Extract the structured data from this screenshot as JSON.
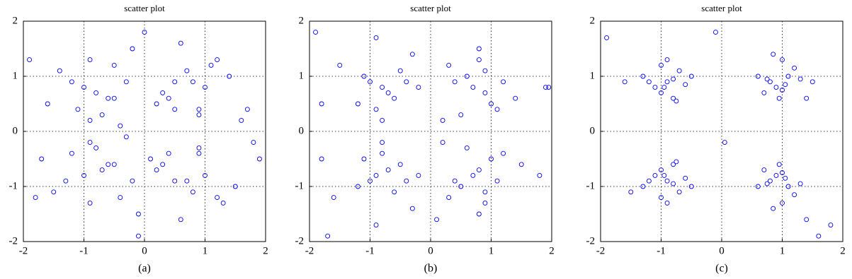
{
  "chart_data": [
    {
      "type": "scatter",
      "title": "scatter plot",
      "caption": "(a)",
      "color": "#0000ff",
      "grid": true,
      "xlim": [
        -2,
        2
      ],
      "ylim": [
        -2,
        2
      ],
      "xticks": [
        -2,
        -1,
        0,
        1,
        2
      ],
      "yticks": [
        -2,
        -1,
        0,
        1,
        2
      ],
      "x": [
        -0.8,
        -0.5,
        -1.1,
        -0.3,
        -0.9,
        -1.4,
        -0.6,
        -0.2,
        -1.0,
        -0.7,
        -1.6,
        -0.4,
        -0.9,
        -1.2,
        -0.5,
        0.8,
        0.5,
        1.1,
        0.3,
        0.9,
        1.4,
        0.6,
        0.2,
        1.0,
        0.7,
        1.6,
        0.4,
        0.9,
        1.2,
        0.5,
        -0.7,
        -0.4,
        -1.2,
        -0.2,
        -0.9,
        -1.5,
        -0.6,
        -0.1,
        -1.0,
        -0.8,
        -1.7,
        -0.3,
        -0.9,
        -1.3,
        -0.5,
        0.7,
        0.4,
        1.2,
        0.2,
        0.9,
        1.5,
        0.6,
        0.1,
        1.0,
        0.8,
        1.8,
        0.3,
        0.9,
        1.3,
        0.5,
        -1.9,
        1.9,
        0.0,
        -0.1,
        1.7,
        -1.8
      ],
      "y": [
        0.7,
        1.2,
        0.4,
        0.9,
        0.2,
        1.1,
        0.6,
        1.5,
        0.8,
        0.3,
        0.5,
        0.1,
        1.3,
        0.9,
        0.6,
        0.9,
        0.4,
        1.2,
        0.7,
        0.3,
        1.0,
        1.6,
        0.5,
        0.8,
        1.1,
        0.2,
        0.6,
        0.4,
        1.3,
        0.9,
        -0.7,
        -1.2,
        -0.4,
        -0.9,
        -0.2,
        -1.1,
        -0.6,
        -1.5,
        -0.8,
        -0.3,
        -0.5,
        -0.1,
        -1.3,
        -0.9,
        -0.6,
        -0.9,
        -0.4,
        -1.2,
        -0.7,
        -0.3,
        -1.0,
        -1.6,
        -0.5,
        -0.8,
        -1.1,
        -0.2,
        -0.6,
        -0.4,
        -1.3,
        -0.9,
        1.3,
        -0.5,
        1.8,
        -1.9,
        0.4,
        -1.2
      ]
    },
    {
      "type": "scatter",
      "title": "scatter plot",
      "caption": "(b)",
      "color": "#0000ff",
      "grid": true,
      "xlim": [
        -2,
        2
      ],
      "ylim": [
        -2,
        2
      ],
      "xticks": [
        -2,
        -1,
        0,
        1,
        2
      ],
      "yticks": [
        -2,
        -1,
        0,
        1,
        2
      ],
      "x": [
        -0.8,
        -0.5,
        -1.2,
        -0.4,
        -0.9,
        -1.5,
        -0.7,
        -0.3,
        -1.0,
        -0.6,
        -1.8,
        -0.8,
        -1.1,
        -0.2,
        -0.9,
        0.9,
        0.6,
        1.1,
        0.4,
        0.8,
        1.4,
        0.7,
        0.3,
        1.0,
        0.5,
        1.9,
        0.8,
        1.2,
        0.2,
        0.9,
        -0.9,
        -0.6,
        -1.1,
        -0.4,
        -0.8,
        -1.6,
        -0.7,
        -0.3,
        -1.0,
        -0.5,
        -1.8,
        -0.8,
        -1.2,
        -0.2,
        -0.9,
        0.8,
        0.5,
        1.2,
        0.4,
        0.9,
        1.5,
        0.7,
        0.3,
        1.0,
        0.6,
        1.8,
        0.8,
        1.1,
        0.2,
        0.9,
        -1.9,
        1.95,
        -1.7,
        0.1
      ],
      "y": [
        0.8,
        1.1,
        0.5,
        0.9,
        0.4,
        1.2,
        0.7,
        1.4,
        0.9,
        0.6,
        0.5,
        0.2,
        1.0,
        0.8,
        1.7,
        0.7,
        1.0,
        0.4,
        0.9,
        1.3,
        0.6,
        0.8,
        1.2,
        0.5,
        0.3,
        0.8,
        1.5,
        0.9,
        0.2,
        1.1,
        -0.8,
        -1.1,
        -0.5,
        -0.9,
        -0.4,
        -1.2,
        -0.7,
        -1.4,
        -0.9,
        -0.6,
        -0.5,
        -0.2,
        -1.0,
        -0.8,
        -1.7,
        -0.7,
        -1.0,
        -0.4,
        -0.9,
        -1.3,
        -0.6,
        -0.8,
        -1.2,
        -0.5,
        -0.3,
        -0.8,
        -1.5,
        -0.9,
        -0.2,
        -1.1,
        1.8,
        0.8,
        -1.9,
        -1.6
      ]
    },
    {
      "type": "scatter",
      "title": "scatter plot",
      "caption": "(c)",
      "color": "#0000ff",
      "grid": true,
      "xlim": [
        -2,
        2
      ],
      "ylim": [
        -2,
        2
      ],
      "xticks": [
        -2,
        -1,
        0,
        1,
        2
      ],
      "yticks": [
        -2,
        -1,
        0,
        1,
        2
      ],
      "x": [
        -0.9,
        -0.7,
        -1.1,
        -0.8,
        -1.0,
        -1.3,
        -0.6,
        -0.9,
        -1.2,
        -0.8,
        -1.6,
        -0.5,
        -1.0,
        -0.95,
        -0.75,
        0.9,
        1.1,
        0.8,
        1.0,
        0.7,
        1.3,
        0.95,
        1.2,
        0.6,
        1.05,
        1.5,
        0.85,
        1.0,
        0.75,
        1.4,
        -0.9,
        -0.7,
        -1.1,
        -0.8,
        -1.0,
        -1.3,
        -0.6,
        -0.9,
        -1.2,
        -0.8,
        -1.5,
        -0.5,
        -1.0,
        -0.95,
        -0.75,
        0.9,
        1.1,
        0.8,
        1.0,
        0.7,
        1.3,
        0.95,
        1.2,
        0.6,
        1.05,
        1.6,
        0.85,
        1.0,
        0.75,
        1.4,
        -1.9,
        -0.1,
        1.8,
        0.05
      ],
      "y": [
        0.9,
        1.1,
        0.8,
        0.95,
        0.7,
        1.0,
        0.85,
        1.3,
        0.9,
        0.6,
        0.9,
        1.0,
        1.2,
        0.8,
        0.55,
        0.8,
        1.0,
        0.9,
        1.3,
        0.7,
        0.95,
        0.6,
        1.15,
        1.0,
        0.85,
        0.9,
        1.4,
        0.75,
        0.95,
        0.6,
        -0.9,
        -1.1,
        -0.8,
        -0.95,
        -0.7,
        -1.0,
        -0.85,
        -1.3,
        -0.9,
        -0.6,
        -1.1,
        -1.0,
        -1.2,
        -0.8,
        -0.55,
        -0.8,
        -1.0,
        -0.9,
        -1.3,
        -0.7,
        -0.95,
        -0.6,
        -1.15,
        -1.0,
        -0.85,
        -1.9,
        -1.4,
        -0.75,
        -0.95,
        -1.6,
        1.7,
        1.8,
        -1.7,
        -0.2
      ]
    }
  ]
}
